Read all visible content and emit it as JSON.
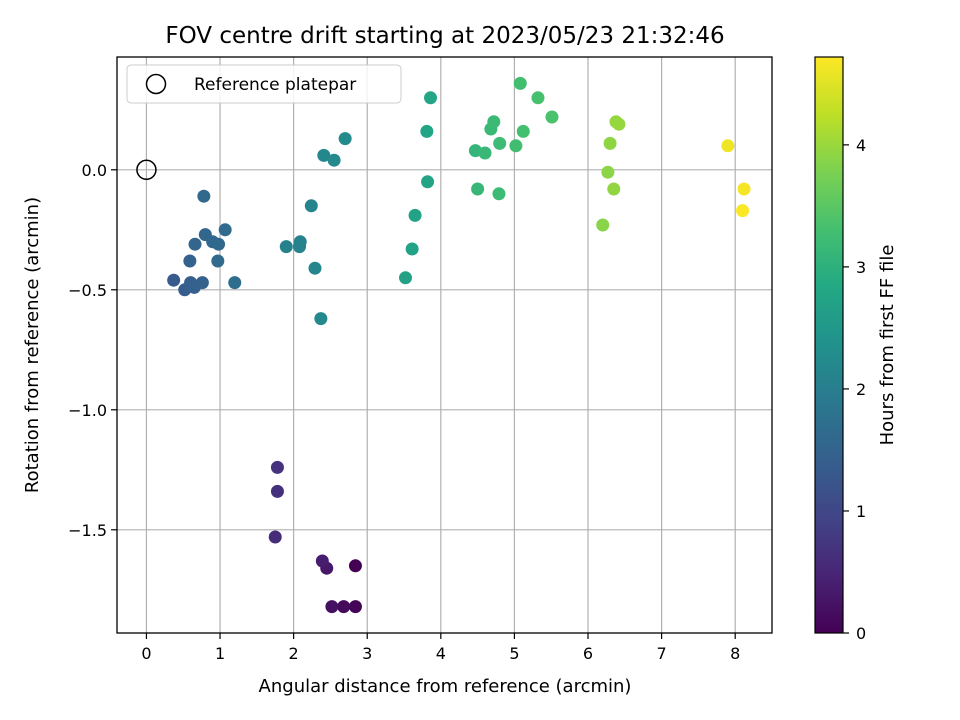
{
  "chart_data": {
    "type": "scatter",
    "title": "FOV centre drift starting at 2023/05/23 21:32:46",
    "xlabel": "Angular distance from reference (arcmin)",
    "ylabel": "Rotation from reference (arcmin)",
    "xlim": [
      -0.4,
      8.5
    ],
    "ylim": [
      -1.93,
      0.47
    ],
    "x_ticks": [
      0,
      1,
      2,
      3,
      4,
      5,
      6,
      7,
      8
    ],
    "x_tick_labels": [
      "0",
      "1",
      "2",
      "3",
      "4",
      "5",
      "6",
      "7",
      "8"
    ],
    "y_ticks": [
      0.0,
      -0.5,
      -1.0,
      -1.5
    ],
    "y_tick_labels": [
      "0.0",
      "−0.5",
      "−1.0",
      "−1.5"
    ],
    "grid": true,
    "legend": {
      "placement": "top-left",
      "entries": [
        "Reference platepar"
      ]
    },
    "reference_point": {
      "x": 0,
      "y": 0,
      "label": "Reference platepar",
      "marker": "hollow-circle"
    },
    "colorbar": {
      "label": "Hours from first FF file",
      "colormap": "viridis",
      "range": [
        0,
        4.72
      ],
      "ticks": [
        0,
        1,
        2,
        3,
        4
      ],
      "tick_labels": [
        "0",
        "1",
        "2",
        "3",
        "4"
      ]
    },
    "points": [
      {
        "x": 2.84,
        "y": -1.65,
        "t": 0.0
      },
      {
        "x": 2.84,
        "y": -1.82,
        "t": 0.05
      },
      {
        "x": 2.68,
        "y": -1.82,
        "t": 0.12
      },
      {
        "x": 2.52,
        "y": -1.82,
        "t": 0.2
      },
      {
        "x": 2.45,
        "y": -1.66,
        "t": 0.3
      },
      {
        "x": 2.39,
        "y": -1.63,
        "t": 0.38
      },
      {
        "x": 1.75,
        "y": -1.53,
        "t": 0.6
      },
      {
        "x": 1.78,
        "y": -1.34,
        "t": 0.65
      },
      {
        "x": 1.78,
        "y": -1.24,
        "t": 0.7
      },
      {
        "x": 0.37,
        "y": -0.46,
        "t": 1.35
      },
      {
        "x": 0.52,
        "y": -0.5,
        "t": 1.38
      },
      {
        "x": 0.6,
        "y": -0.47,
        "t": 1.42
      },
      {
        "x": 0.65,
        "y": -0.49,
        "t": 1.45
      },
      {
        "x": 0.76,
        "y": -0.47,
        "t": 1.47
      },
      {
        "x": 0.59,
        "y": -0.38,
        "t": 1.5
      },
      {
        "x": 0.66,
        "y": -0.31,
        "t": 1.52
      },
      {
        "x": 0.8,
        "y": -0.27,
        "t": 1.55
      },
      {
        "x": 0.9,
        "y": -0.3,
        "t": 1.58
      },
      {
        "x": 0.98,
        "y": -0.31,
        "t": 1.6
      },
      {
        "x": 0.97,
        "y": -0.38,
        "t": 1.62
      },
      {
        "x": 1.07,
        "y": -0.25,
        "t": 1.65
      },
      {
        "x": 1.2,
        "y": -0.47,
        "t": 1.68
      },
      {
        "x": 0.78,
        "y": -0.11,
        "t": 1.6
      },
      {
        "x": 1.9,
        "y": -0.32,
        "t": 2.05
      },
      {
        "x": 2.08,
        "y": -0.32,
        "t": 2.07
      },
      {
        "x": 2.09,
        "y": -0.3,
        "t": 2.09
      },
      {
        "x": 2.24,
        "y": -0.15,
        "t": 2.12
      },
      {
        "x": 2.29,
        "y": -0.41,
        "t": 2.15
      },
      {
        "x": 2.37,
        "y": -0.62,
        "t": 2.2
      },
      {
        "x": 2.41,
        "y": 0.06,
        "t": 2.18
      },
      {
        "x": 2.55,
        "y": 0.04,
        "t": 2.22
      },
      {
        "x": 2.7,
        "y": 0.13,
        "t": 2.25
      },
      {
        "x": 3.52,
        "y": -0.45,
        "t": 2.68
      },
      {
        "x": 3.61,
        "y": -0.33,
        "t": 2.7
      },
      {
        "x": 3.65,
        "y": -0.19,
        "t": 2.72
      },
      {
        "x": 3.82,
        "y": -0.05,
        "t": 2.75
      },
      {
        "x": 3.81,
        "y": 0.16,
        "t": 2.78
      },
      {
        "x": 3.86,
        "y": 0.3,
        "t": 2.8
      },
      {
        "x": 4.47,
        "y": 0.08,
        "t": 3.1
      },
      {
        "x": 4.5,
        "y": -0.08,
        "t": 3.12
      },
      {
        "x": 4.6,
        "y": 0.07,
        "t": 3.14
      },
      {
        "x": 4.68,
        "y": 0.17,
        "t": 3.16
      },
      {
        "x": 4.72,
        "y": 0.2,
        "t": 3.18
      },
      {
        "x": 4.79,
        "y": -0.1,
        "t": 3.2
      },
      {
        "x": 4.8,
        "y": 0.11,
        "t": 3.22
      },
      {
        "x": 5.02,
        "y": 0.1,
        "t": 3.26
      },
      {
        "x": 5.08,
        "y": 0.36,
        "t": 3.28
      },
      {
        "x": 5.12,
        "y": 0.16,
        "t": 3.3
      },
      {
        "x": 5.32,
        "y": 0.3,
        "t": 3.33
      },
      {
        "x": 5.51,
        "y": 0.22,
        "t": 3.36
      },
      {
        "x": 6.2,
        "y": -0.23,
        "t": 3.88
      },
      {
        "x": 6.27,
        "y": -0.01,
        "t": 3.9
      },
      {
        "x": 6.3,
        "y": 0.11,
        "t": 3.92
      },
      {
        "x": 6.35,
        "y": -0.08,
        "t": 3.94
      },
      {
        "x": 6.38,
        "y": 0.2,
        "t": 3.96
      },
      {
        "x": 6.42,
        "y": 0.19,
        "t": 3.98
      },
      {
        "x": 7.9,
        "y": 0.1,
        "t": 4.62
      },
      {
        "x": 8.12,
        "y": -0.08,
        "t": 4.66
      },
      {
        "x": 8.1,
        "y": -0.17,
        "t": 4.7
      }
    ]
  }
}
